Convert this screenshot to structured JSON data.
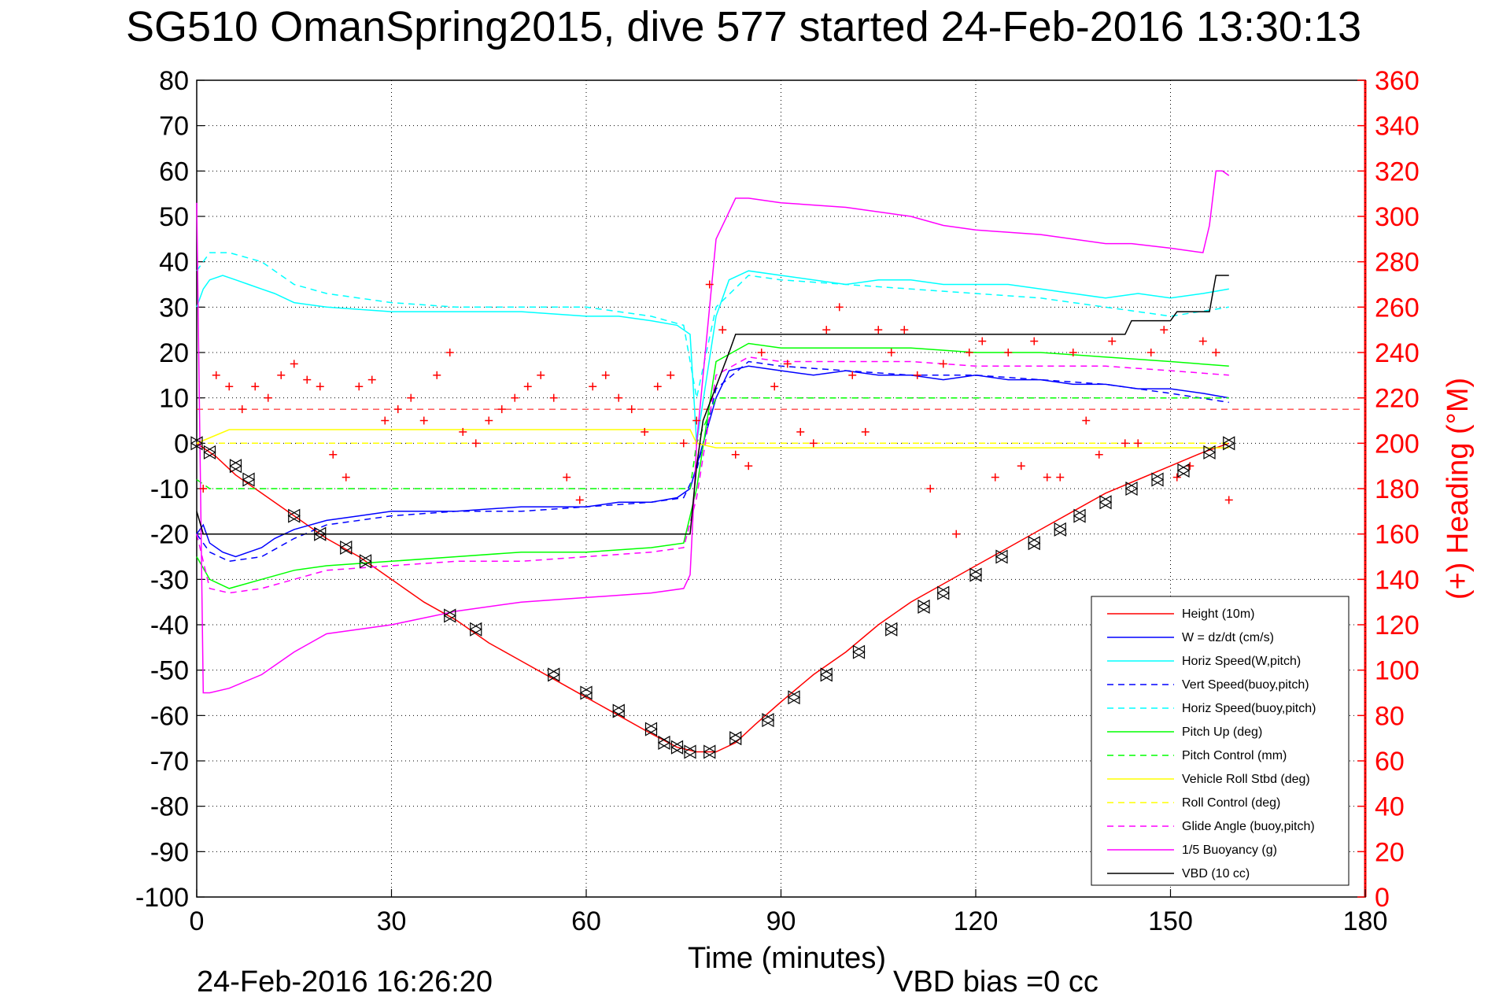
{
  "chart_data": {
    "type": "line",
    "title": "SG510 OmanSpring2015, dive 577 started 24-Feb-2016 13:30:13",
    "xlabel": "Time (minutes)",
    "ylabel": "",
    "y2label": "(+) Heading (°M)",
    "xlim": [
      0,
      180
    ],
    "ylim": [
      -100,
      80
    ],
    "y2lim": [
      0,
      360
    ],
    "xticks": [
      "0",
      "30",
      "60",
      "90",
      "120",
      "150",
      "180"
    ],
    "yticks": [
      "80",
      "70",
      "60",
      "50",
      "40",
      "30",
      "20",
      "10",
      "0",
      "-10",
      "-20",
      "-30",
      "-40",
      "-50",
      "-60",
      "-70",
      "-80",
      "-90",
      "-100"
    ],
    "y2ticks": [
      "360",
      "340",
      "320",
      "300",
      "280",
      "260",
      "240",
      "220",
      "200",
      "180",
      "160",
      "140",
      "120",
      "100",
      "80",
      "60",
      "40",
      "20",
      "0"
    ],
    "grid": true,
    "legend_position": "lower-right",
    "footer_left": "24-Feb-2016 16:26:20",
    "footer_right": "VBD bias =0 cc",
    "colors": {
      "red": "#ff0000",
      "blue": "#0000ff",
      "cyan": "#00ffff",
      "green": "#00ff00",
      "yellow": "#ffff00",
      "magenta": "#ff00ff",
      "black": "#000000"
    },
    "series": [
      {
        "name": "Height (10m)",
        "color": "#ff0000",
        "style": "solid",
        "x": [
          0,
          3,
          6,
          10,
          15,
          20,
          25,
          30,
          35,
          40,
          45,
          50,
          55,
          60,
          65,
          70,
          74,
          77,
          80,
          83,
          86,
          90,
          95,
          100,
          105,
          110,
          115,
          120,
          125,
          130,
          135,
          140,
          145,
          150,
          155,
          159
        ],
        "y": [
          0,
          -3,
          -7,
          -11,
          -16,
          -21,
          -25,
          -30,
          -35,
          -39,
          -44,
          -48,
          -52,
          -56,
          -60,
          -64,
          -67,
          -68,
          -68,
          -66,
          -62,
          -57,
          -51,
          -46,
          -40,
          -35,
          -31,
          -27,
          -23,
          -19,
          -15,
          -11,
          -8,
          -5,
          -2,
          0
        ]
      },
      {
        "name": "W = dz/dt (cm/s)",
        "color": "#0000ff",
        "style": "solid",
        "x": [
          0,
          1,
          2,
          4,
          6,
          8,
          10,
          12,
          15,
          20,
          25,
          30,
          40,
          50,
          60,
          65,
          70,
          74,
          76,
          77,
          80,
          82,
          85,
          90,
          95,
          100,
          105,
          110,
          115,
          120,
          125,
          130,
          135,
          140,
          145,
          150,
          155,
          159
        ],
        "y": [
          -20,
          -18,
          -22,
          -24,
          -25,
          -24,
          -23,
          -21,
          -19,
          -17,
          -16,
          -15,
          -15,
          -14,
          -14,
          -13,
          -13,
          -12,
          -10,
          -5,
          10,
          16,
          17,
          16,
          15,
          16,
          15,
          15,
          14,
          15,
          14,
          14,
          13,
          13,
          12,
          12,
          11,
          10
        ]
      },
      {
        "name": "Horiz Speed(W,pitch)",
        "color": "#00ffff",
        "style": "solid",
        "x": [
          0,
          1,
          2,
          4,
          6,
          8,
          10,
          12,
          15,
          20,
          30,
          40,
          50,
          60,
          65,
          70,
          74,
          76,
          77,
          80,
          82,
          85,
          90,
          95,
          100,
          105,
          110,
          115,
          120,
          125,
          130,
          135,
          140,
          145,
          150,
          155,
          159
        ],
        "y": [
          30,
          34,
          36,
          37,
          36,
          35,
          34,
          33,
          31,
          30,
          29,
          29,
          29,
          28,
          28,
          27,
          26,
          24,
          0,
          28,
          36,
          38,
          37,
          36,
          35,
          36,
          36,
          35,
          35,
          35,
          34,
          33,
          32,
          33,
          32,
          33,
          34
        ]
      },
      {
        "name": "Vert Speed(buoy,pitch)",
        "color": "#0000ff",
        "style": "dashed",
        "x": [
          0,
          2,
          5,
          10,
          15,
          20,
          30,
          40,
          50,
          60,
          70,
          75,
          77,
          80,
          85,
          90,
          100,
          110,
          120,
          130,
          140,
          150,
          159
        ],
        "y": [
          -20,
          -24,
          -26,
          -25,
          -21,
          -18,
          -16,
          -15,
          -15,
          -14,
          -13,
          -12,
          -6,
          12,
          18,
          17,
          16,
          15,
          15,
          14,
          13,
          11,
          9
        ]
      },
      {
        "name": "Horiz Speed(buoy,pitch)",
        "color": "#00ffff",
        "style": "dashed",
        "x": [
          0,
          2,
          5,
          10,
          15,
          20,
          30,
          40,
          50,
          60,
          70,
          75,
          77,
          80,
          85,
          90,
          100,
          110,
          120,
          130,
          140,
          150,
          159
        ],
        "y": [
          38,
          42,
          42,
          40,
          35,
          33,
          31,
          30,
          30,
          30,
          28,
          26,
          10,
          30,
          37,
          36,
          35,
          34,
          33,
          32,
          30,
          28,
          30
        ]
      },
      {
        "name": "Pitch Up (deg)",
        "color": "#00ff00",
        "style": "solid",
        "x": [
          0,
          2,
          5,
          10,
          15,
          20,
          30,
          40,
          50,
          60,
          70,
          75,
          77,
          80,
          85,
          90,
          100,
          110,
          120,
          130,
          140,
          150,
          159
        ],
        "y": [
          -25,
          -30,
          -32,
          -30,
          -28,
          -27,
          -26,
          -25,
          -24,
          -24,
          -23,
          -22,
          -10,
          18,
          22,
          21,
          21,
          21,
          20,
          20,
          19,
          18,
          17
        ]
      },
      {
        "name": "Pitch Control (mm)",
        "color": "#00ff00",
        "style": "dashed",
        "x": [
          0,
          2,
          5,
          30,
          60,
          76,
          77,
          80,
          85,
          110,
          140,
          159
        ],
        "y": [
          -8,
          -10,
          -10,
          -10,
          -10,
          -10,
          0,
          10,
          10,
          10,
          10,
          10
        ]
      },
      {
        "name": "Vehicle Roll Stbd (deg)",
        "color": "#ffff00",
        "style": "solid",
        "x": [
          0,
          5,
          20,
          40,
          60,
          76,
          77,
          80,
          90,
          110,
          130,
          150,
          159
        ],
        "y": [
          0,
          3,
          3,
          3,
          3,
          3,
          0,
          -1,
          -1,
          -1,
          -1,
          -1,
          -1
        ]
      },
      {
        "name": "Roll Control (deg)",
        "color": "#ffff00",
        "style": "dashed",
        "x": [
          0,
          20,
          40,
          60,
          76,
          80,
          100,
          120,
          140,
          159
        ],
        "y": [
          0,
          0,
          0,
          0,
          0,
          0,
          0,
          0,
          0,
          0
        ]
      },
      {
        "name": "Glide Angle (buoy,pitch)",
        "color": "#ff00ff",
        "style": "dashed",
        "x": [
          0,
          2,
          5,
          10,
          15,
          20,
          30,
          40,
          50,
          60,
          70,
          75,
          77,
          80,
          85,
          90,
          100,
          110,
          120,
          130,
          140,
          150,
          159
        ],
        "y": [
          -20,
          -32,
          -33,
          -32,
          -30,
          -28,
          -27,
          -26,
          -26,
          -25,
          -24,
          -23,
          -12,
          15,
          19,
          18,
          18,
          18,
          17,
          17,
          17,
          16,
          15
        ]
      },
      {
        "name": "1/5 Buoyancy (g)",
        "color": "#ff00ff",
        "style": "solid",
        "x": [
          0,
          1,
          2,
          5,
          10,
          15,
          20,
          30,
          40,
          50,
          60,
          70,
          75,
          76,
          77,
          80,
          83,
          85,
          90,
          100,
          110,
          115,
          120,
          130,
          140,
          143,
          144,
          150,
          155,
          156,
          157,
          158,
          159
        ],
        "y": [
          53,
          -55,
          -55,
          -54,
          -51,
          -46,
          -42,
          -40,
          -37,
          -35,
          -34,
          -33,
          -32,
          -29,
          0,
          45,
          54,
          54,
          53,
          52,
          50,
          48,
          47,
          46,
          44,
          44,
          44,
          43,
          42,
          48,
          60,
          60,
          59
        ]
      },
      {
        "name": "VBD (10 cc)",
        "color": "#000000",
        "style": "solid",
        "x": [
          0,
          1,
          2,
          10,
          20,
          40,
          60,
          76,
          77,
          78,
          82,
          83,
          90,
          100,
          120,
          140,
          143,
          144,
          150,
          151,
          156,
          157,
          159
        ],
        "y": [
          -15,
          -20,
          -20,
          -20,
          -20,
          -20,
          -20,
          -20,
          -5,
          5,
          20,
          24,
          24,
          24,
          24,
          24,
          24,
          27,
          27,
          29,
          29,
          37,
          37
        ]
      }
    ],
    "heading_points": {
      "name": "(+) Heading (°M)",
      "color": "#ff0000",
      "marker": "+",
      "axis": "right",
      "x": [
        1,
        3,
        5,
        7,
        9,
        11,
        13,
        15,
        17,
        19,
        21,
        23,
        25,
        27,
        29,
        31,
        33,
        35,
        37,
        39,
        41,
        43,
        45,
        47,
        49,
        51,
        53,
        55,
        57,
        59,
        61,
        63,
        65,
        67,
        69,
        71,
        73,
        75,
        77,
        79,
        81,
        83,
        85,
        87,
        89,
        91,
        93,
        95,
        97,
        99,
        101,
        103,
        105,
        107,
        109,
        111,
        113,
        115,
        117,
        119,
        121,
        123,
        125,
        127,
        129,
        131,
        133,
        135,
        137,
        139,
        141,
        143,
        145,
        147,
        149,
        151,
        153,
        155,
        157,
        159
      ],
      "y": [
        180,
        230,
        225,
        215,
        225,
        220,
        230,
        235,
        228,
        225,
        195,
        185,
        225,
        228,
        210,
        215,
        220,
        210,
        230,
        240,
        205,
        200,
        210,
        215,
        220,
        225,
        230,
        220,
        185,
        175,
        225,
        230,
        220,
        215,
        205,
        225,
        230,
        200,
        210,
        270,
        250,
        195,
        190,
        240,
        225,
        235,
        205,
        200,
        250,
        260,
        230,
        205,
        250,
        240,
        250,
        230,
        180,
        235,
        160,
        240,
        245,
        185,
        240,
        190,
        245,
        185,
        185,
        240,
        210,
        195,
        245,
        200,
        200,
        240,
        250,
        185,
        190,
        245,
        240,
        175
      ]
    },
    "reference_line": {
      "color": "#ff0000",
      "style": "dashed",
      "y": 7.5
    },
    "triangle_markers": {
      "color": "#000000",
      "x": [
        0,
        2,
        6,
        8,
        15,
        19,
        23,
        26,
        39,
        43,
        55,
        60,
        65,
        70,
        72,
        74,
        76,
        79,
        83,
        88,
        92,
        97,
        102,
        107,
        112,
        115,
        120,
        124,
        129,
        133,
        136,
        140,
        144,
        148,
        152,
        156,
        159
      ],
      "y": [
        0,
        -2,
        -5,
        -8,
        -16,
        -20,
        -23,
        -26,
        -38,
        -41,
        -51,
        -55,
        -59,
        -63,
        -66,
        -67,
        -68,
        -68,
        -65,
        -61,
        -56,
        -51,
        -46,
        -41,
        -36,
        -33,
        -29,
        -25,
        -22,
        -19,
        -16,
        -13,
        -10,
        -8,
        -6,
        -2,
        0
      ]
    }
  }
}
